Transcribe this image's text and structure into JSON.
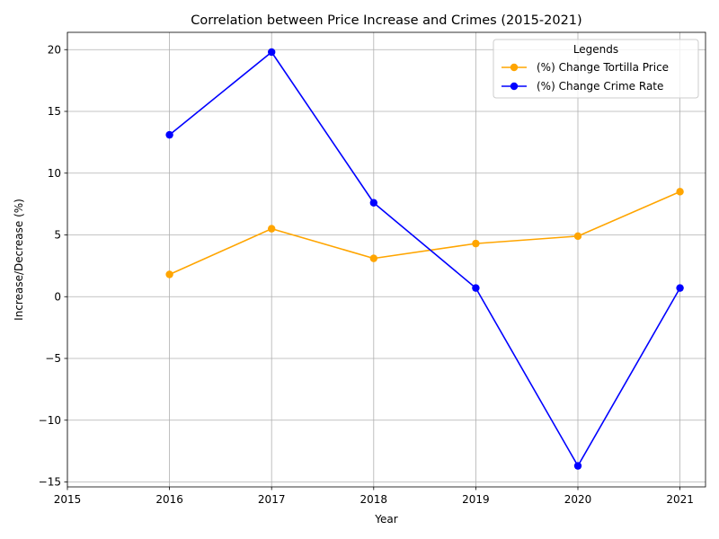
{
  "chart_data": {
    "type": "line",
    "title": "Correlation between Price Increase and Crimes (2015-2021)",
    "xlabel": "Year",
    "ylabel": "Increase/Decrease (%)",
    "x": [
      2016,
      2017,
      2018,
      2019,
      2020,
      2021
    ],
    "xlim": [
      2015,
      2021.25
    ],
    "ylim": [
      -15.4,
      21.4
    ],
    "xticks": [
      "2015",
      "2016",
      "2017",
      "2018",
      "2019",
      "2020",
      "2021"
    ],
    "yticks": [
      -15,
      -10,
      -5,
      0,
      5,
      10,
      15,
      20
    ],
    "ytick_labels": [
      "−15",
      "−10",
      "−5",
      "0",
      "5",
      "10",
      "15",
      "20"
    ],
    "grid": true,
    "legend": {
      "title": "Legends",
      "placement": "top-right"
    },
    "series": [
      {
        "name": "(%) Change Tortilla Price",
        "color": "#FFA500",
        "marker": "circle",
        "values": [
          1.8,
          5.5,
          3.1,
          4.3,
          4.9,
          8.5
        ]
      },
      {
        "name": "(%) Change Crime Rate",
        "color": "#0000FF",
        "marker": "circle",
        "values": [
          13.1,
          19.8,
          7.6,
          0.7,
          -13.7,
          0.7
        ]
      }
    ]
  }
}
